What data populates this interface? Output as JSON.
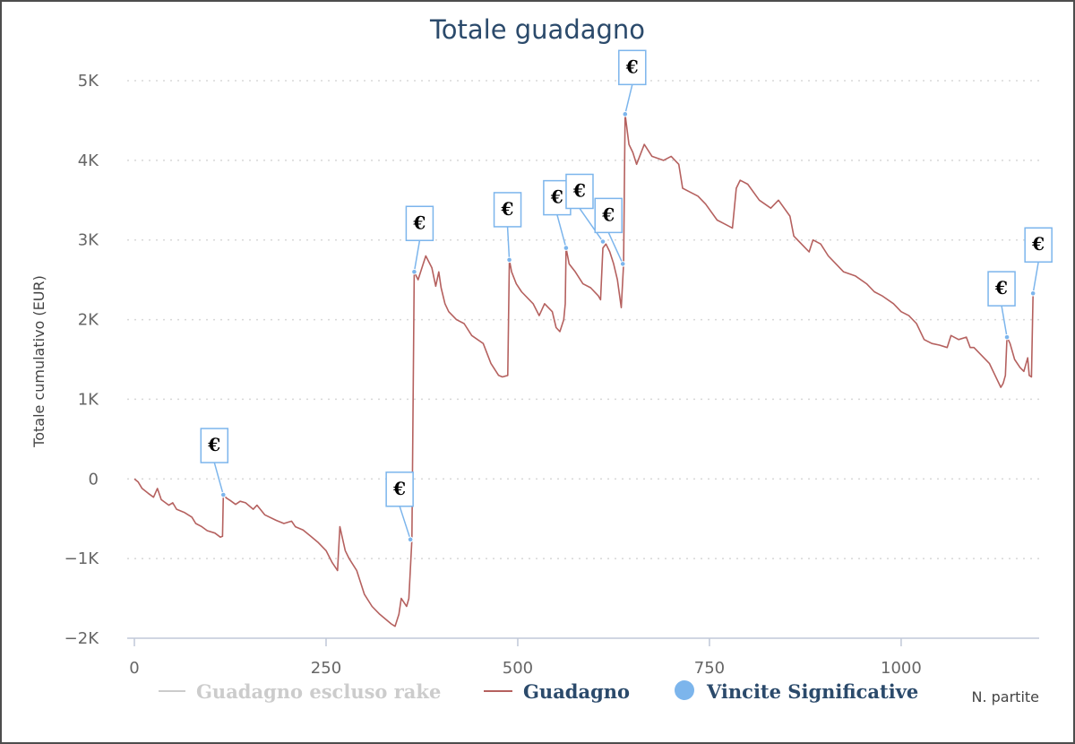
{
  "chart_data": {
    "type": "line",
    "title": "Totale guadagno",
    "xlabel": "N. partite",
    "ylabel": "Totale cumulativo (EUR)",
    "xlim": [
      0,
      1180
    ],
    "ylim": [
      -2000,
      5000
    ],
    "x_ticks": [
      0,
      250,
      500,
      750,
      1000
    ],
    "x_tick_labels": [
      "0",
      "250",
      "500",
      "750",
      "1000"
    ],
    "y_ticks": [
      -2000,
      -1000,
      0,
      1000,
      2000,
      3000,
      4000,
      5000
    ],
    "y_tick_labels": [
      "−2K",
      "−1K",
      "0",
      "1K",
      "2K",
      "3K",
      "4K",
      "5K"
    ],
    "grid": "horizontal dotted",
    "legend_position": "bottom",
    "legend": [
      {
        "name": "Guadagno escluso rake",
        "kind": "line",
        "color": "#cccccc",
        "hidden": true
      },
      {
        "name": "Guadagno",
        "kind": "line",
        "color": "#b5615f"
      },
      {
        "name": "Vincite Significative",
        "kind": "marker",
        "color": "#7cb5ec"
      }
    ],
    "series": [
      {
        "name": "Guadagno",
        "color": "#b5615f",
        "points": [
          [
            0,
            0
          ],
          [
            5,
            -40
          ],
          [
            10,
            -120
          ],
          [
            18,
            -180
          ],
          [
            25,
            -230
          ],
          [
            30,
            -120
          ],
          [
            35,
            -260
          ],
          [
            45,
            -330
          ],
          [
            50,
            -300
          ],
          [
            55,
            -380
          ],
          [
            65,
            -420
          ],
          [
            75,
            -480
          ],
          [
            80,
            -560
          ],
          [
            88,
            -600
          ],
          [
            95,
            -650
          ],
          [
            105,
            -680
          ],
          [
            112,
            -730
          ],
          [
            115,
            -720
          ],
          [
            116,
            -200
          ],
          [
            120,
            -240
          ],
          [
            125,
            -270
          ],
          [
            132,
            -320
          ],
          [
            138,
            -280
          ],
          [
            145,
            -300
          ],
          [
            155,
            -380
          ],
          [
            160,
            -330
          ],
          [
            170,
            -450
          ],
          [
            185,
            -520
          ],
          [
            195,
            -560
          ],
          [
            205,
            -530
          ],
          [
            210,
            -600
          ],
          [
            220,
            -640
          ],
          [
            230,
            -720
          ],
          [
            240,
            -800
          ],
          [
            250,
            -900
          ],
          [
            258,
            -1050
          ],
          [
            265,
            -1150
          ],
          [
            268,
            -600
          ],
          [
            275,
            -900
          ],
          [
            280,
            -1000
          ],
          [
            290,
            -1150
          ],
          [
            300,
            -1450
          ],
          [
            310,
            -1600
          ],
          [
            320,
            -1700
          ],
          [
            335,
            -1820
          ],
          [
            340,
            -1850
          ],
          [
            345,
            -1700
          ],
          [
            348,
            -1500
          ],
          [
            355,
            -1600
          ],
          [
            358,
            -1500
          ],
          [
            362,
            -760
          ],
          [
            365,
            2600
          ],
          [
            370,
            2500
          ],
          [
            375,
            2650
          ],
          [
            380,
            2800
          ],
          [
            388,
            2650
          ],
          [
            393,
            2420
          ],
          [
            397,
            2600
          ],
          [
            400,
            2400
          ],
          [
            405,
            2200
          ],
          [
            410,
            2100
          ],
          [
            420,
            2000
          ],
          [
            430,
            1950
          ],
          [
            440,
            1800
          ],
          [
            455,
            1700
          ],
          [
            465,
            1450
          ],
          [
            475,
            1300
          ],
          [
            480,
            1280
          ],
          [
            487,
            1300
          ],
          [
            489,
            2750
          ],
          [
            492,
            2600
          ],
          [
            498,
            2450
          ],
          [
            505,
            2350
          ],
          [
            520,
            2200
          ],
          [
            528,
            2050
          ],
          [
            535,
            2200
          ],
          [
            545,
            2100
          ],
          [
            550,
            1900
          ],
          [
            555,
            1850
          ],
          [
            560,
            2000
          ],
          [
            562,
            2200
          ],
          [
            563,
            2900
          ],
          [
            567,
            2700
          ],
          [
            575,
            2600
          ],
          [
            585,
            2450
          ],
          [
            595,
            2400
          ],
          [
            605,
            2300
          ],
          [
            608,
            2250
          ],
          [
            611,
            2900
          ],
          [
            615,
            2950
          ],
          [
            620,
            2850
          ],
          [
            625,
            2700
          ],
          [
            630,
            2500
          ],
          [
            635,
            2150
          ],
          [
            638,
            2700
          ],
          [
            640,
            4580
          ],
          [
            645,
            4200
          ],
          [
            650,
            4100
          ],
          [
            655,
            3950
          ],
          [
            665,
            4200
          ],
          [
            675,
            4050
          ],
          [
            690,
            4000
          ],
          [
            700,
            4050
          ],
          [
            710,
            3950
          ],
          [
            715,
            3650
          ],
          [
            725,
            3600
          ],
          [
            735,
            3550
          ],
          [
            745,
            3450
          ],
          [
            760,
            3250
          ],
          [
            770,
            3200
          ],
          [
            780,
            3150
          ],
          [
            785,
            3650
          ],
          [
            790,
            3750
          ],
          [
            800,
            3700
          ],
          [
            815,
            3500
          ],
          [
            830,
            3400
          ],
          [
            840,
            3500
          ],
          [
            855,
            3300
          ],
          [
            860,
            3050
          ],
          [
            875,
            2900
          ],
          [
            880,
            2850
          ],
          [
            885,
            3000
          ],
          [
            895,
            2950
          ],
          [
            905,
            2800
          ],
          [
            915,
            2700
          ],
          [
            925,
            2600
          ],
          [
            940,
            2550
          ],
          [
            955,
            2450
          ],
          [
            965,
            2350
          ],
          [
            975,
            2300
          ],
          [
            990,
            2200
          ],
          [
            1000,
            2100
          ],
          [
            1010,
            2050
          ],
          [
            1020,
            1950
          ],
          [
            1030,
            1750
          ],
          [
            1040,
            1700
          ],
          [
            1050,
            1680
          ],
          [
            1060,
            1650
          ],
          [
            1065,
            1800
          ],
          [
            1075,
            1750
          ],
          [
            1085,
            1780
          ],
          [
            1090,
            1650
          ],
          [
            1095,
            1650
          ],
          [
            1105,
            1550
          ],
          [
            1115,
            1450
          ],
          [
            1125,
            1250
          ],
          [
            1130,
            1150
          ],
          [
            1133,
            1200
          ],
          [
            1136,
            1300
          ],
          [
            1138,
            1780
          ],
          [
            1142,
            1700
          ],
          [
            1148,
            1500
          ],
          [
            1155,
            1400
          ],
          [
            1160,
            1350
          ],
          [
            1165,
            1520
          ],
          [
            1167,
            1300
          ],
          [
            1170,
            1280
          ],
          [
            1172,
            2330
          ]
        ]
      }
    ],
    "flagged_wins": [
      {
        "x": 116,
        "y": -200,
        "label": "€"
      },
      {
        "x": 360,
        "y": -760,
        "label": "€"
      },
      {
        "x": 365,
        "y": 2600,
        "label": "€"
      },
      {
        "x": 489,
        "y": 2750,
        "label": "€"
      },
      {
        "x": 563,
        "y": 2900,
        "label": "€"
      },
      {
        "x": 611,
        "y": 2980,
        "label": "€"
      },
      {
        "x": 637,
        "y": 2700,
        "label": "€"
      },
      {
        "x": 640,
        "y": 4580,
        "label": "€"
      },
      {
        "x": 1138,
        "y": 1780,
        "label": "€"
      },
      {
        "x": 1172,
        "y": 2330,
        "label": "€"
      }
    ]
  }
}
